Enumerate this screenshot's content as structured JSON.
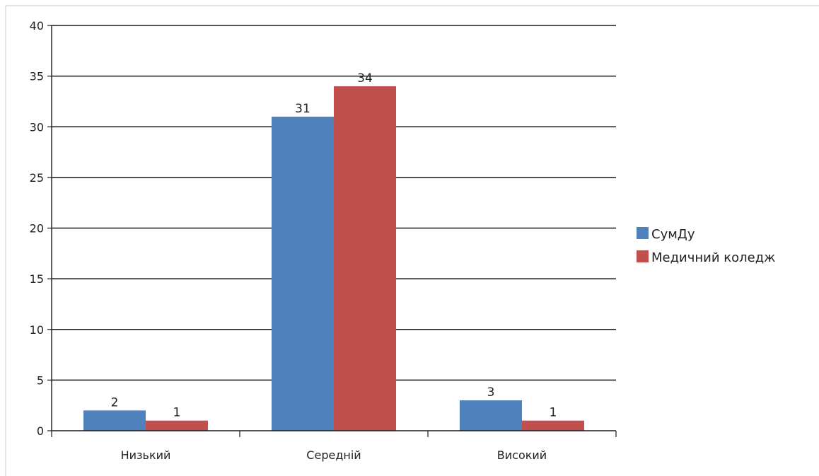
{
  "chart_data": {
    "type": "bar",
    "title": "",
    "xlabel": "",
    "ylabel": "",
    "categories": [
      "Низький",
      "Середній",
      "Високий"
    ],
    "series": [
      {
        "name": "СумДу",
        "values": [
          2,
          31,
          3
        ],
        "color": "#4F81BD"
      },
      {
        "name": "Медичний коледж",
        "values": [
          1,
          34,
          1
        ],
        "color": "#C0504D"
      }
    ],
    "ylim": [
      0,
      40
    ],
    "yticks": [
      0,
      5,
      10,
      15,
      20,
      25,
      30,
      35,
      40
    ],
    "grid": true,
    "data_labels": true,
    "legend_position": "right"
  }
}
